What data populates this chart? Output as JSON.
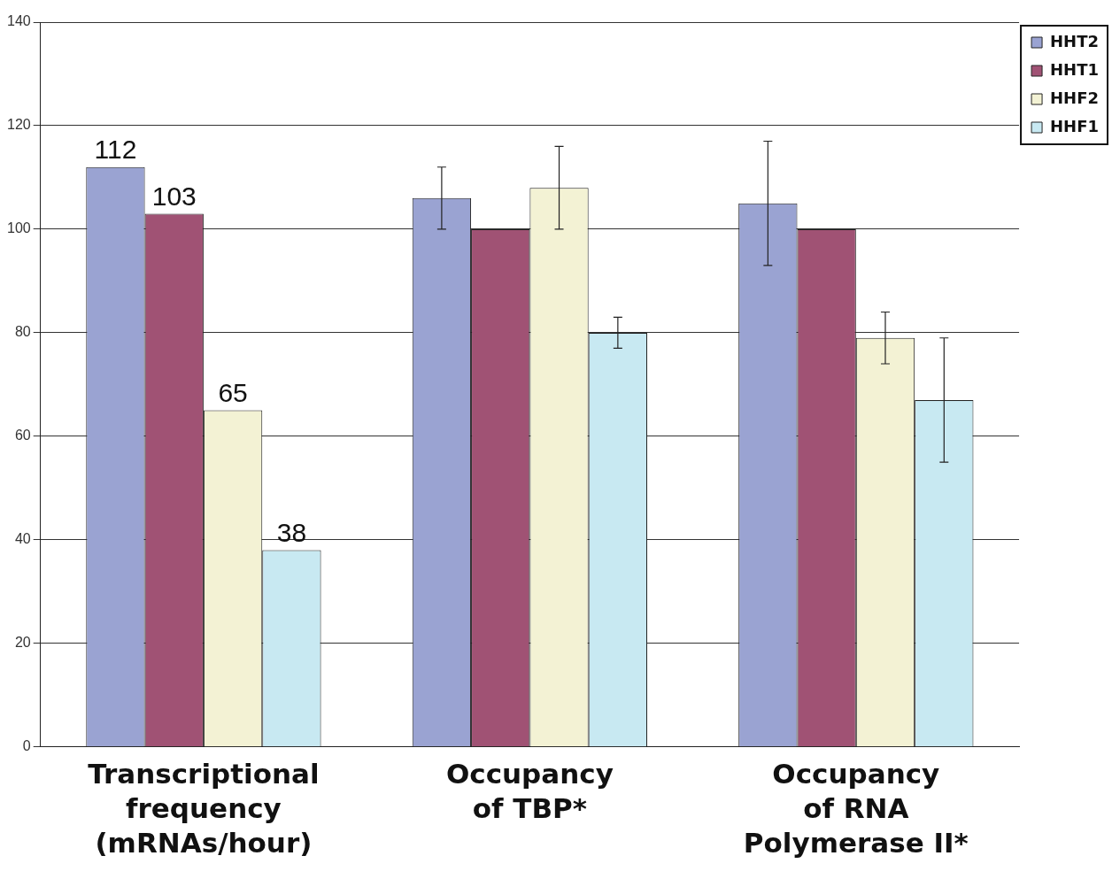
{
  "chart_data": {
    "type": "bar",
    "categories": [
      "Transcriptional frequency (mRNAs/hour)",
      "Occupancy of TBP*",
      "Occupancy of RNA Polymerase II*"
    ],
    "series": [
      {
        "name": "HHT2",
        "color": "#9aa3d2",
        "values": [
          112,
          106,
          105
        ],
        "errors": [
          null,
          [
            100,
            112
          ],
          [
            93,
            117
          ]
        ],
        "value_labels": [
          "112",
          null,
          null
        ]
      },
      {
        "name": "HHT1",
        "color": "#a05274",
        "values": [
          103,
          100,
          100
        ],
        "errors": [
          null,
          null,
          null
        ],
        "value_labels": [
          "103",
          null,
          null
        ]
      },
      {
        "name": "HHF2",
        "color": "#f3f2d4",
        "values": [
          65,
          108,
          79
        ],
        "errors": [
          null,
          [
            100,
            116
          ],
          [
            74,
            84
          ]
        ],
        "value_labels": [
          "65",
          null,
          null
        ]
      },
      {
        "name": "HHF1",
        "color": "#c8e9f2",
        "values": [
          38,
          80,
          67
        ],
        "errors": [
          null,
          [
            77,
            83
          ],
          [
            55,
            79
          ]
        ],
        "value_labels": [
          "38",
          null,
          null
        ]
      }
    ],
    "ylim": [
      0,
      140
    ],
    "yticks": [
      0,
      20,
      40,
      60,
      80,
      100,
      120,
      140
    ],
    "grid": "y",
    "legend": "top right"
  }
}
